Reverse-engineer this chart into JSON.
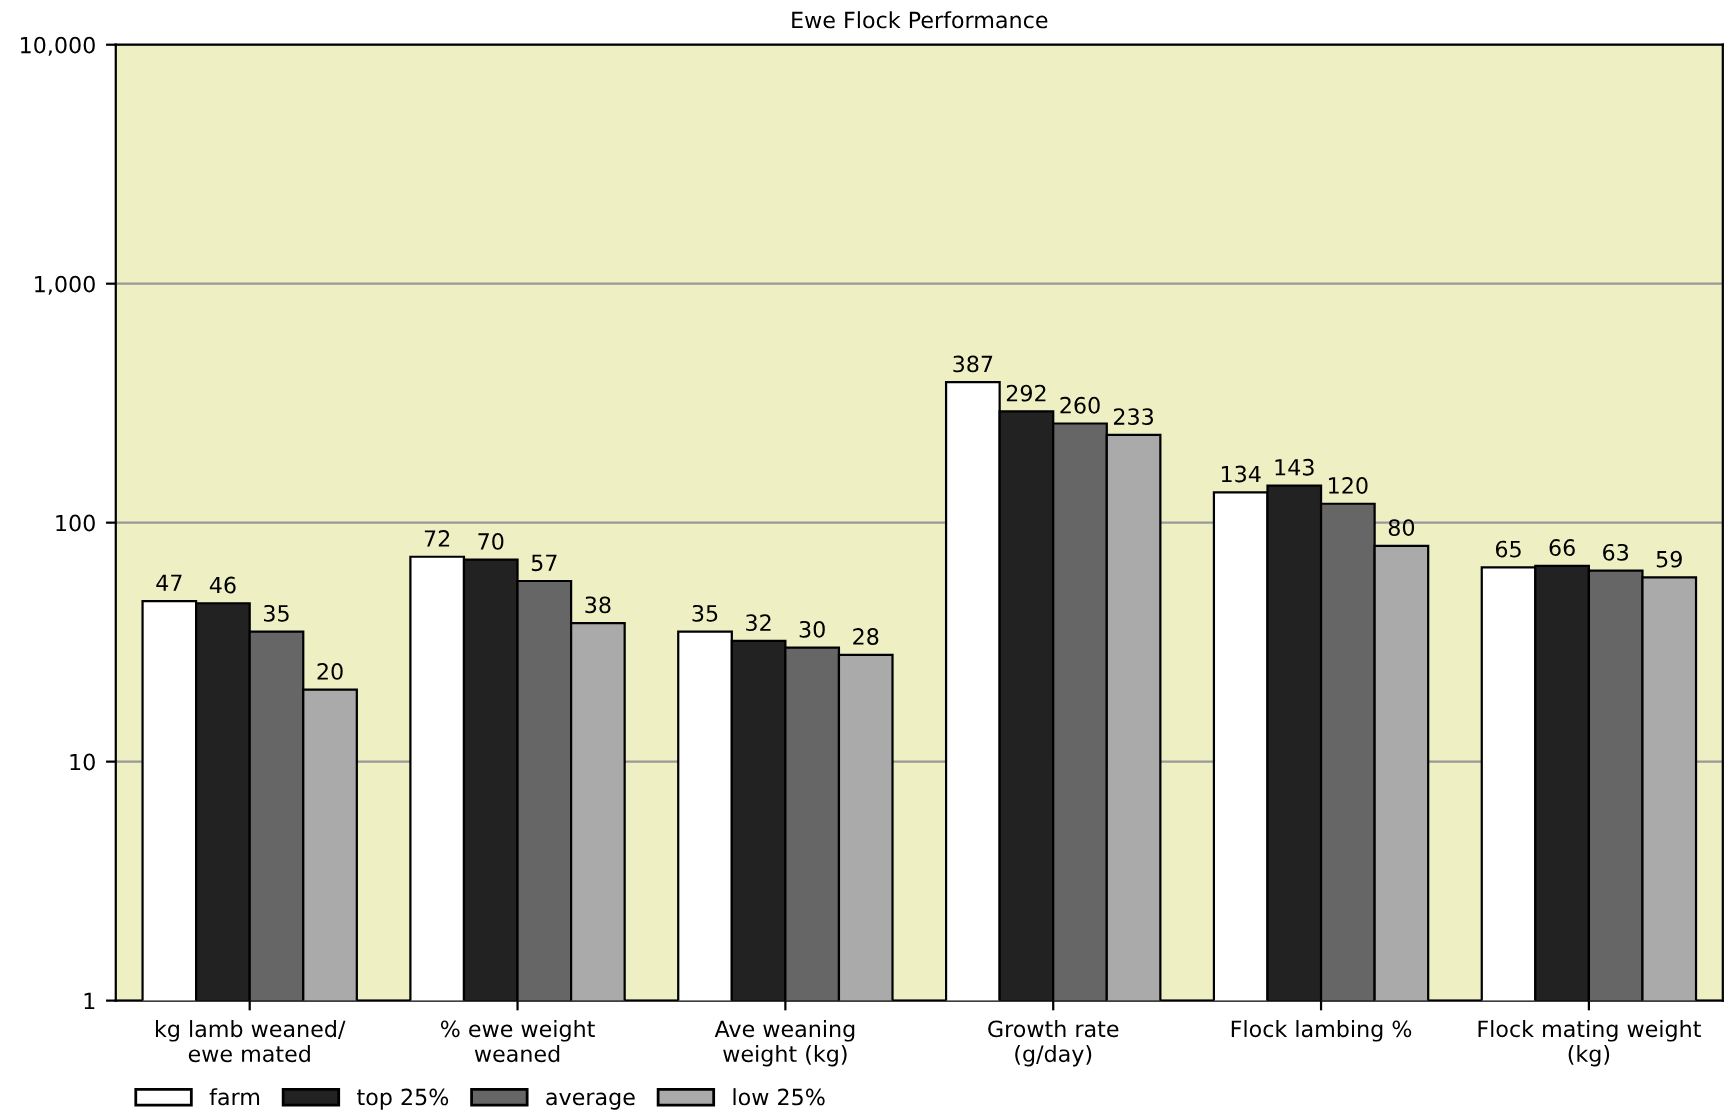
{
  "chart_data": {
    "type": "bar",
    "title": "Ewe Flock Performance",
    "categories": [
      "kg lamb weaned/\newe mated",
      "% ewe weight\nweaned",
      "Ave weaning\nweight (kg)",
      "Growth rate\n(g/day)",
      "Flock lambing %",
      "Flock mating weight\n(kg)"
    ],
    "series": [
      {
        "name": "farm",
        "color": "#ffffff",
        "values": [
          47,
          72,
          35,
          387,
          134,
          65
        ]
      },
      {
        "name": "top 25%",
        "color": "#222222",
        "values": [
          46,
          70,
          32,
          292,
          143,
          66
        ]
      },
      {
        "name": "average",
        "color": "#666666",
        "values": [
          35,
          57,
          30,
          260,
          120,
          63
        ]
      },
      {
        "name": "low 25%",
        "color": "#aaaaaa",
        "values": [
          20,
          38,
          28,
          233,
          80,
          59
        ]
      }
    ],
    "log": true,
    "ylim": [
      1,
      10000
    ],
    "yticks": [
      1,
      10,
      100,
      {
        "value": 1000,
        "label": "1,000"
      },
      {
        "value": 10000,
        "label": "10,000"
      }
    ],
    "grid": "y",
    "legend": "bottom left",
    "data_labels": true
  }
}
